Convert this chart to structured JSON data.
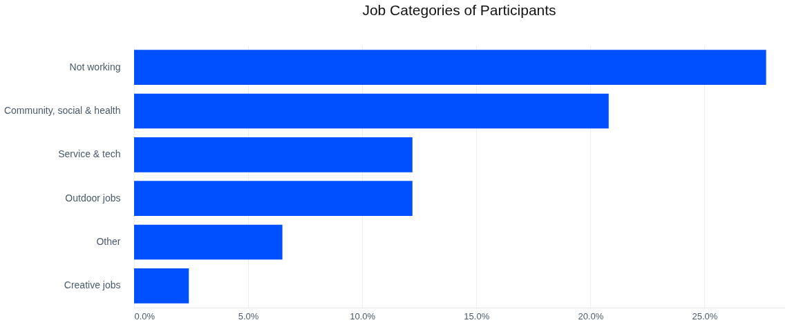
{
  "chart_data": {
    "type": "bar",
    "orientation": "horizontal",
    "title": "Job Categories of Participants",
    "categories": [
      "Not working",
      "Community, social & health",
      "Service & tech",
      "Outdoor jobs",
      "Other",
      "Creative jobs"
    ],
    "values": [
      27.7,
      20.8,
      12.2,
      12.2,
      6.5,
      2.4
    ],
    "color": "#0050ff",
    "xlim": [
      0,
      28.5
    ],
    "xticks": [
      {
        "value": 0,
        "label": "0.0%"
      },
      {
        "value": 5,
        "label": "5.0%"
      },
      {
        "value": 10,
        "label": "10.0%"
      },
      {
        "value": 15,
        "label": "15.0%"
      },
      {
        "value": 20,
        "label": "20.0%"
      },
      {
        "value": 25,
        "label": "25.0%"
      }
    ],
    "grid": "x"
  }
}
